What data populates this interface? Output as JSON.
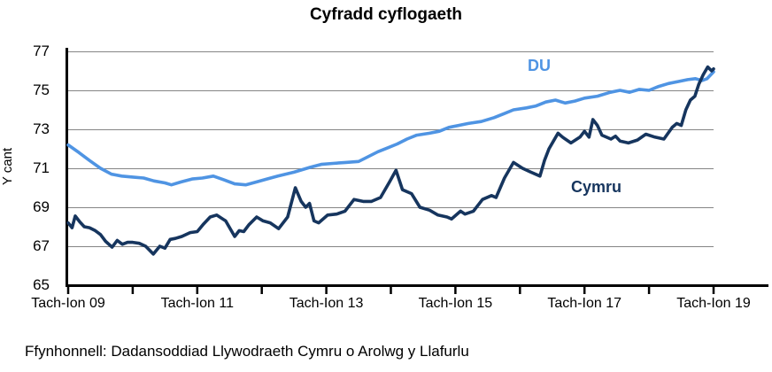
{
  "title": "Cyfradd cyflogaeth",
  "source": "Ffynhonnell: Dadansoddiad Llywodraeth Cymru o Arolwg y Llafurlu",
  "y_axis": {
    "label": "Y cant",
    "ticks": [
      77,
      75,
      73,
      71,
      69,
      67,
      65
    ]
  },
  "x_axis": {
    "tick_labels": [
      "Tach-Ion 09",
      "Tach-Ion 11",
      "Tach-Ion 13",
      "Tach-Ion 15",
      "Tach-Ion 17",
      "Tach-Ion 19"
    ]
  },
  "series_labels": {
    "du": "DU",
    "cymru": "Cymru"
  },
  "colors": {
    "du": "#4f94e3",
    "cymru": "#16355e",
    "gridline": "#858585",
    "axis": "#000000"
  },
  "chart_data": {
    "type": "line",
    "title": "Cyfradd cyflogaeth",
    "xlabel": "",
    "ylabel": "Y cant",
    "ylim": [
      65,
      77
    ],
    "x_unit": "years since Tach-Ion 09 (Nov-Jan), labels every 2 years, minor ticks yearly",
    "x_range": [
      0,
      10
    ],
    "grid": "horizontal",
    "legend_position": "inline-labels",
    "series": [
      {
        "name": "DU",
        "color": "#4f94e3",
        "points": [
          [
            0,
            72.2
          ],
          [
            0.17,
            71.8
          ],
          [
            0.33,
            71.4
          ],
          [
            0.5,
            71.0
          ],
          [
            0.67,
            70.7
          ],
          [
            0.83,
            70.6
          ],
          [
            1.0,
            70.55
          ],
          [
            1.17,
            70.5
          ],
          [
            1.33,
            70.35
          ],
          [
            1.5,
            70.25
          ],
          [
            1.6,
            70.15
          ],
          [
            1.75,
            70.3
          ],
          [
            1.92,
            70.45
          ],
          [
            2.08,
            70.5
          ],
          [
            2.25,
            70.6
          ],
          [
            2.42,
            70.4
          ],
          [
            2.58,
            70.2
          ],
          [
            2.75,
            70.15
          ],
          [
            2.92,
            70.3
          ],
          [
            3.08,
            70.45
          ],
          [
            3.25,
            70.6
          ],
          [
            3.5,
            70.8
          ],
          [
            3.75,
            71.05
          ],
          [
            3.92,
            71.2
          ],
          [
            4.1,
            71.25
          ],
          [
            4.3,
            71.3
          ],
          [
            4.5,
            71.35
          ],
          [
            4.65,
            71.6
          ],
          [
            4.8,
            71.85
          ],
          [
            4.95,
            72.05
          ],
          [
            5.1,
            72.25
          ],
          [
            5.25,
            72.5
          ],
          [
            5.4,
            72.7
          ],
          [
            5.6,
            72.8
          ],
          [
            5.75,
            72.9
          ],
          [
            5.9,
            73.1
          ],
          [
            6.05,
            73.2
          ],
          [
            6.2,
            73.3
          ],
          [
            6.4,
            73.4
          ],
          [
            6.6,
            73.6
          ],
          [
            6.75,
            73.8
          ],
          [
            6.9,
            74.0
          ],
          [
            7.1,
            74.1
          ],
          [
            7.25,
            74.2
          ],
          [
            7.4,
            74.4
          ],
          [
            7.55,
            74.5
          ],
          [
            7.7,
            74.35
          ],
          [
            7.85,
            74.45
          ],
          [
            8.0,
            74.6
          ],
          [
            8.2,
            74.7
          ],
          [
            8.4,
            74.9
          ],
          [
            8.55,
            75.0
          ],
          [
            8.7,
            74.9
          ],
          [
            8.85,
            75.05
          ],
          [
            9.0,
            75.0
          ],
          [
            9.15,
            75.2
          ],
          [
            9.3,
            75.35
          ],
          [
            9.45,
            75.45
          ],
          [
            9.6,
            75.55
          ],
          [
            9.72,
            75.6
          ],
          [
            9.82,
            75.5
          ],
          [
            9.9,
            75.6
          ],
          [
            10.0,
            75.95
          ]
        ]
      },
      {
        "name": "Cymru",
        "color": "#16355e",
        "points": [
          [
            0,
            68.2
          ],
          [
            0.06,
            67.95
          ],
          [
            0.11,
            68.55
          ],
          [
            0.18,
            68.25
          ],
          [
            0.25,
            68.0
          ],
          [
            0.33,
            67.95
          ],
          [
            0.42,
            67.8
          ],
          [
            0.5,
            67.6
          ],
          [
            0.58,
            67.25
          ],
          [
            0.68,
            66.95
          ],
          [
            0.76,
            67.3
          ],
          [
            0.84,
            67.1
          ],
          [
            0.92,
            67.2
          ],
          [
            1.0,
            67.2
          ],
          [
            1.1,
            67.15
          ],
          [
            1.2,
            67.0
          ],
          [
            1.32,
            66.6
          ],
          [
            1.42,
            67.0
          ],
          [
            1.5,
            66.9
          ],
          [
            1.58,
            67.35
          ],
          [
            1.66,
            67.4
          ],
          [
            1.76,
            67.5
          ],
          [
            1.89,
            67.7
          ],
          [
            2.0,
            67.75
          ],
          [
            2.1,
            68.15
          ],
          [
            2.2,
            68.5
          ],
          [
            2.3,
            68.6
          ],
          [
            2.44,
            68.3
          ],
          [
            2.58,
            67.5
          ],
          [
            2.65,
            67.8
          ],
          [
            2.72,
            67.75
          ],
          [
            2.8,
            68.1
          ],
          [
            2.92,
            68.5
          ],
          [
            3.02,
            68.3
          ],
          [
            3.13,
            68.2
          ],
          [
            3.26,
            67.9
          ],
          [
            3.4,
            68.5
          ],
          [
            3.52,
            70.0
          ],
          [
            3.61,
            69.3
          ],
          [
            3.68,
            69.0
          ],
          [
            3.74,
            69.2
          ],
          [
            3.81,
            68.3
          ],
          [
            3.88,
            68.2
          ],
          [
            4.02,
            68.6
          ],
          [
            4.16,
            68.65
          ],
          [
            4.29,
            68.8
          ],
          [
            4.43,
            69.4
          ],
          [
            4.57,
            69.3
          ],
          [
            4.7,
            69.3
          ],
          [
            4.84,
            69.5
          ],
          [
            4.98,
            70.3
          ],
          [
            5.08,
            70.9
          ],
          [
            5.18,
            69.9
          ],
          [
            5.32,
            69.7
          ],
          [
            5.45,
            69.0
          ],
          [
            5.6,
            68.85
          ],
          [
            5.73,
            68.6
          ],
          [
            5.87,
            68.5
          ],
          [
            5.94,
            68.4
          ],
          [
            6.08,
            68.8
          ],
          [
            6.15,
            68.65
          ],
          [
            6.28,
            68.8
          ],
          [
            6.42,
            69.4
          ],
          [
            6.56,
            69.6
          ],
          [
            6.63,
            69.5
          ],
          [
            6.76,
            70.5
          ],
          [
            6.9,
            71.3
          ],
          [
            7.04,
            71.0
          ],
          [
            7.17,
            70.8
          ],
          [
            7.31,
            70.6
          ],
          [
            7.38,
            71.4
          ],
          [
            7.45,
            72.0
          ],
          [
            7.52,
            72.4
          ],
          [
            7.59,
            72.8
          ],
          [
            7.66,
            72.6
          ],
          [
            7.79,
            72.3
          ],
          [
            7.93,
            72.6
          ],
          [
            8.0,
            72.9
          ],
          [
            8.07,
            72.6
          ],
          [
            8.13,
            73.5
          ],
          [
            8.2,
            73.2
          ],
          [
            8.27,
            72.7
          ],
          [
            8.41,
            72.5
          ],
          [
            8.48,
            72.65
          ],
          [
            8.55,
            72.4
          ],
          [
            8.68,
            72.3
          ],
          [
            8.82,
            72.45
          ],
          [
            8.95,
            72.75
          ],
          [
            9.09,
            72.6
          ],
          [
            9.23,
            72.5
          ],
          [
            9.36,
            73.1
          ],
          [
            9.43,
            73.3
          ],
          [
            9.5,
            73.2
          ],
          [
            9.57,
            74.0
          ],
          [
            9.64,
            74.5
          ],
          [
            9.71,
            74.7
          ],
          [
            9.77,
            75.3
          ],
          [
            9.84,
            75.8
          ],
          [
            9.91,
            76.2
          ],
          [
            9.97,
            76.0
          ],
          [
            10.0,
            76.1
          ]
        ]
      }
    ]
  }
}
